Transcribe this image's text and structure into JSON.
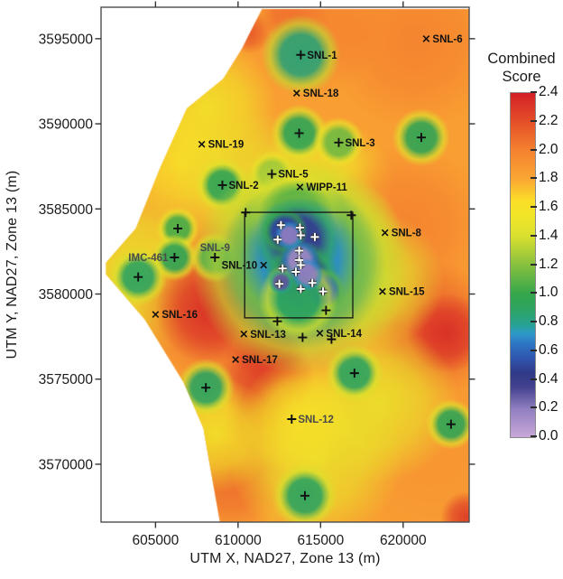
{
  "figure": {
    "background": "#ffffff"
  },
  "chart_data": {
    "type": "heatmap",
    "title": "",
    "xlabel": "UTM X, NAD27, Zone 13 (m)",
    "ylabel": "UTM Y, NAD27, Zone 13 (m)",
    "x_range": [
      601700,
      624000
    ],
    "y_range": [
      3566600,
      3596850
    ],
    "x_ticks": [
      "605000",
      "610000",
      "615000",
      "620000"
    ],
    "y_ticks": [
      "3595000",
      "3590000",
      "3585000",
      "3580000",
      "3575000",
      "3570000"
    ],
    "grid": false,
    "legend_position": "right",
    "colorbar": {
      "title_line1": "Combined",
      "title_line2": "Score",
      "ticks": [
        "2.4",
        "2.2",
        "2.0",
        "1.8",
        "1.6",
        "1.4",
        "1.2",
        "1.0",
        "0.8",
        "0.6",
        "0.4",
        "0.2",
        "0.0"
      ],
      "min": 0.0,
      "max": 2.4
    },
    "colormap": [
      [
        0.0,
        "#c9a8d8"
      ],
      [
        0.2,
        "#8f7ec0"
      ],
      [
        0.35,
        "#43418f"
      ],
      [
        0.45,
        "#2f3a88"
      ],
      [
        0.55,
        "#2f55ae"
      ],
      [
        0.65,
        "#2d74c3"
      ],
      [
        0.72,
        "#2e99c9"
      ],
      [
        0.78,
        "#27a295"
      ],
      [
        0.9,
        "#2ea45f"
      ],
      [
        1.0,
        "#35a64b"
      ],
      [
        1.2,
        "#86c03f"
      ],
      [
        1.4,
        "#d9e02e"
      ],
      [
        1.55,
        "#f2e528"
      ],
      [
        1.65,
        "#fbde28"
      ],
      [
        1.8,
        "#faa733"
      ],
      [
        2.0,
        "#f58230"
      ],
      [
        2.2,
        "#e54f28"
      ],
      [
        2.4,
        "#d31f26"
      ]
    ],
    "base_score": 1.85,
    "boundary_polygon": [
      [
        611450,
        3596750
      ],
      [
        624000,
        3596750
      ],
      [
        624000,
        3566600
      ],
      [
        608900,
        3566600
      ],
      [
        607900,
        3572100
      ],
      [
        606700,
        3574800
      ],
      [
        604350,
        3578500
      ],
      [
        602000,
        3581150
      ],
      [
        602000,
        3581850
      ],
      [
        603800,
        3583850
      ],
      [
        605250,
        3587350
      ],
      [
        606900,
        3590900
      ],
      [
        609100,
        3592650
      ],
      [
        610250,
        3594450
      ]
    ],
    "study_area_box": {
      "x_min": 610400,
      "x_max": 616950,
      "y_min": 3578600,
      "y_max": 3584800
    },
    "sites": [
      {
        "name": "SNL-1",
        "marker": "plus",
        "x": 613800,
        "y": 3594050,
        "side": "right",
        "muted": false
      },
      {
        "name": "SNL-6",
        "marker": "x",
        "x": 621400,
        "y": 3595000,
        "side": "right",
        "muted": false
      },
      {
        "name": "SNL-18",
        "marker": "x",
        "x": 613550,
        "y": 3591800,
        "side": "right",
        "muted": false
      },
      {
        "name": "SNL-19",
        "marker": "x",
        "x": 607800,
        "y": 3588800,
        "side": "right",
        "muted": false
      },
      {
        "name": "SNL-3",
        "marker": "plus",
        "x": 616100,
        "y": 3588900,
        "side": "right",
        "muted": false
      },
      {
        "name": "SNL-5",
        "marker": "plus",
        "x": 612050,
        "y": 3587050,
        "side": "right",
        "muted": false
      },
      {
        "name": "SNL-2",
        "marker": "plus",
        "x": 609050,
        "y": 3586400,
        "side": "right",
        "muted": false
      },
      {
        "name": "WIPP-11",
        "marker": "x",
        "x": 613750,
        "y": 3586280,
        "side": "right",
        "muted": false
      },
      {
        "name": "SNL-8",
        "marker": "x",
        "x": 618900,
        "y": 3583600,
        "side": "right",
        "muted": false
      },
      {
        "name": "IMC-461",
        "marker": "plus",
        "x": 606150,
        "y": 3582150,
        "side": "left",
        "muted": true
      },
      {
        "name": "SNL-9",
        "marker": "plus",
        "x": 608600,
        "y": 3582150,
        "side": "above",
        "muted": true
      },
      {
        "name": "SNL-10",
        "marker": "x",
        "x": 611550,
        "y": 3581700,
        "side": "left",
        "muted": false
      },
      {
        "name": "SNL-15",
        "marker": "x",
        "x": 618750,
        "y": 3580150,
        "side": "right",
        "muted": false
      },
      {
        "name": "SNL-16",
        "marker": "x",
        "x": 605000,
        "y": 3578800,
        "side": "right",
        "muted": false
      },
      {
        "name": "SNL-13",
        "marker": "x",
        "x": 610350,
        "y": 3577650,
        "side": "right",
        "muted": false
      },
      {
        "name": "SNL-14",
        "marker": "x",
        "x": 614950,
        "y": 3577700,
        "side": "right",
        "muted": false
      },
      {
        "name": "SNL-17",
        "marker": "x",
        "x": 609850,
        "y": 3576150,
        "side": "right",
        "muted": false
      },
      {
        "name": "SNL-12",
        "marker": "plus",
        "x": 613250,
        "y": 3572650,
        "side": "right",
        "muted": true
      }
    ],
    "unlabeled_markers": [
      [
        613700,
        3589450
      ],
      [
        621100,
        3589200
      ],
      [
        606350,
        3583850
      ],
      [
        603950,
        3581000
      ],
      [
        608050,
        3574500
      ],
      [
        617050,
        3575350
      ],
      [
        622900,
        3572350
      ],
      [
        614050,
        3568150
      ],
      [
        612380,
        3578400
      ],
      [
        615330,
        3579040
      ],
      [
        613910,
        3577450
      ],
      [
        615660,
        3577340
      ],
      [
        610460,
        3584790
      ],
      [
        616860,
        3584630
      ]
    ],
    "cluster_markers": [
      [
        612600,
        3584050
      ],
      [
        613750,
        3583900
      ],
      [
        613800,
        3583450
      ],
      [
        614650,
        3583350
      ],
      [
        612400,
        3583200
      ],
      [
        613700,
        3582550
      ],
      [
        613700,
        3582000
      ],
      [
        613800,
        3581700
      ],
      [
        612700,
        3581500
      ],
      [
        613500,
        3581300
      ],
      [
        612500,
        3580600
      ],
      [
        614500,
        3580650
      ],
      [
        613800,
        3580300
      ],
      [
        615150,
        3580150
      ]
    ],
    "field_blobs": [
      {
        "x": 608200,
        "y": 3590900,
        "r": 1900,
        "s": 1.55
      },
      {
        "x": 606500,
        "y": 3587700,
        "r": 1600,
        "s": 1.6
      },
      {
        "x": 603800,
        "y": 3581300,
        "r": 2400,
        "s": 1.5
      },
      {
        "x": 610900,
        "y": 3586000,
        "r": 2200,
        "s": 1.5
      },
      {
        "x": 615300,
        "y": 3586400,
        "r": 1900,
        "s": 1.55
      },
      {
        "x": 613350,
        "y": 3596500,
        "r": 900,
        "s": 2.2
      },
      {
        "x": 610700,
        "y": 3595400,
        "r": 600,
        "s": 2.2
      },
      {
        "x": 614700,
        "y": 3595800,
        "r": 1900,
        "s": 2.0
      },
      {
        "x": 620700,
        "y": 3594900,
        "r": 2400,
        "s": 2.0
      },
      {
        "x": 620200,
        "y": 3584000,
        "r": 2200,
        "s": 2.0
      },
      {
        "x": 621800,
        "y": 3577900,
        "r": 1900,
        "s": 2.15
      },
      {
        "x": 622650,
        "y": 3577700,
        "r": 1100,
        "s": 2.35
      },
      {
        "x": 609000,
        "y": 3579500,
        "r": 2400,
        "s": 2.1
      },
      {
        "x": 608300,
        "y": 3579100,
        "r": 1500,
        "s": 2.35
      },
      {
        "x": 611900,
        "y": 3576800,
        "r": 1000,
        "s": 2.25
      },
      {
        "x": 611700,
        "y": 3574950,
        "r": 1350,
        "s": 2.3
      },
      {
        "x": 611450,
        "y": 3572550,
        "r": 1000,
        "s": 2.2
      },
      {
        "x": 609550,
        "y": 3569350,
        "r": 1600,
        "s": 2.1
      },
      {
        "x": 621800,
        "y": 3570700,
        "r": 2400,
        "s": 1.9
      },
      {
        "x": 623800,
        "y": 3566900,
        "r": 700,
        "s": 2.3
      },
      {
        "x": 614700,
        "y": 3570400,
        "r": 2400,
        "s": 1.5
      },
      {
        "x": 618550,
        "y": 3573600,
        "r": 2200,
        "s": 1.5
      },
      {
        "x": 608700,
        "y": 3571750,
        "r": 1600,
        "s": 1.55
      },
      {
        "x": 618300,
        "y": 3580800,
        "r": 1900,
        "s": 1.45
      },
      {
        "x": 616900,
        "y": 3583700,
        "r": 1350,
        "s": 1.5
      },
      {
        "x": 613650,
        "y": 3572800,
        "r": 1600,
        "s": 1.6
      },
      {
        "x": 613800,
        "y": 3594050,
        "r": 1100,
        "s": 0.85
      },
      {
        "x": 613700,
        "y": 3589450,
        "r": 800,
        "s": 0.95
      },
      {
        "x": 616100,
        "y": 3588900,
        "r": 700,
        "s": 1.15
      },
      {
        "x": 621100,
        "y": 3589200,
        "r": 800,
        "s": 0.95
      },
      {
        "x": 609050,
        "y": 3586400,
        "r": 750,
        "s": 0.95
      },
      {
        "x": 612050,
        "y": 3587050,
        "r": 650,
        "s": 1.25
      },
      {
        "x": 606350,
        "y": 3583850,
        "r": 600,
        "s": 1.05
      },
      {
        "x": 606150,
        "y": 3582150,
        "r": 650,
        "s": 0.95
      },
      {
        "x": 608600,
        "y": 3582150,
        "r": 700,
        "s": 0.95
      },
      {
        "x": 603950,
        "y": 3581000,
        "r": 800,
        "s": 0.9
      },
      {
        "x": 608050,
        "y": 3574500,
        "r": 800,
        "s": 0.9
      },
      {
        "x": 617050,
        "y": 3575350,
        "r": 800,
        "s": 0.9
      },
      {
        "x": 614050,
        "y": 3568150,
        "r": 900,
        "s": 0.9
      },
      {
        "x": 622900,
        "y": 3572350,
        "r": 700,
        "s": 0.95
      },
      {
        "x": 613800,
        "y": 3581700,
        "r": 3000,
        "s": 0.85
      },
      {
        "x": 613500,
        "y": 3584500,
        "r": 1350,
        "s": 1.0
      },
      {
        "x": 613750,
        "y": 3582100,
        "r": 2150,
        "s": 0.7
      },
      {
        "x": 613600,
        "y": 3583200,
        "r": 1200,
        "s": 0.42
      },
      {
        "x": 613850,
        "y": 3580900,
        "r": 1050,
        "s": 0.45
      },
      {
        "x": 612800,
        "y": 3583700,
        "r": 650,
        "s": 0.5
      },
      {
        "x": 615100,
        "y": 3580200,
        "r": 650,
        "s": 0.6
      },
      {
        "x": 613650,
        "y": 3579700,
        "r": 1100,
        "s": 0.9
      },
      {
        "x": 613750,
        "y": 3582000,
        "r": 550,
        "s": 0.15
      },
      {
        "x": 613100,
        "y": 3583450,
        "r": 400,
        "s": 0.2
      },
      {
        "x": 614200,
        "y": 3581150,
        "r": 450,
        "s": 0.2
      },
      {
        "x": 612600,
        "y": 3580700,
        "r": 350,
        "s": 0.3
      }
    ]
  }
}
